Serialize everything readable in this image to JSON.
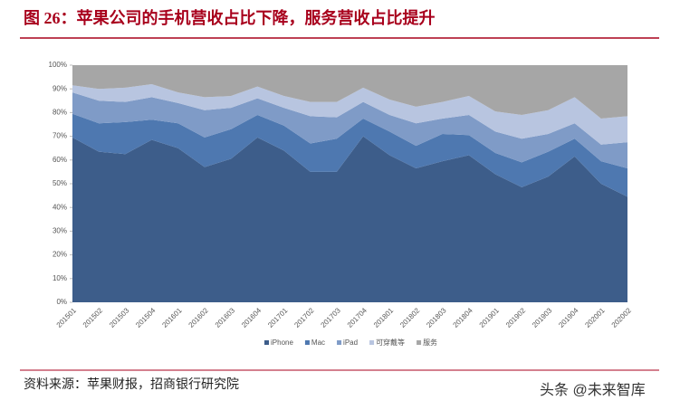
{
  "chart_data": {
    "type": "stacked-area",
    "title": "图 26：苹果公司的手机营收占比下降，服务营收占比提升",
    "source": "资料来源：苹果财报，招商银行研究院",
    "watermark": "头条 @未来智库",
    "categories": [
      "201501",
      "201502",
      "201503",
      "201504",
      "201601",
      "201602",
      "201603",
      "201604",
      "201701",
      "201702",
      "201703",
      "201704",
      "201801",
      "201802",
      "201803",
      "201804",
      "201901",
      "201902",
      "201903",
      "201904",
      "202001",
      "202002"
    ],
    "series": [
      {
        "name": "iPhone",
        "color": "#3d5d8a",
        "values": [
          69.5,
          63.5,
          62.5,
          68.5,
          65,
          57,
          60.5,
          69.5,
          64,
          55,
          55,
          70,
          62,
          56.5,
          59.5,
          62,
          54,
          48.5,
          53,
          61.5,
          50,
          44.5
        ]
      },
      {
        "name": "Mac",
        "color": "#4e78b0",
        "values": [
          10,
          12,
          13.5,
          8.5,
          10.5,
          12.5,
          12.5,
          9.5,
          10.5,
          12,
          14,
          7.5,
          10,
          9.5,
          11.5,
          8.5,
          9,
          10.5,
          10.5,
          7.5,
          9.5,
          12
        ]
      },
      {
        "name": "iPad",
        "color": "#7f9bc7",
        "values": [
          9,
          9.5,
          8.5,
          9.5,
          8.5,
          11.5,
          9,
          7,
          7.5,
          11.5,
          9,
          7,
          7,
          9.5,
          6.5,
          8.5,
          9,
          10,
          7.5,
          6.5,
          7,
          11
        ]
      },
      {
        "name": "可穿戴等",
        "color": "#b8c5e0",
        "values": [
          3,
          5,
          6,
          5.5,
          4.5,
          5.5,
          5,
          5,
          5,
          6,
          6.5,
          6,
          6.5,
          7,
          7,
          8,
          8.5,
          10,
          10,
          11,
          11,
          11
        ]
      },
      {
        "name": "服务",
        "color": "#a6a6a6",
        "values": [
          8.5,
          10,
          9.5,
          8,
          11.5,
          13.5,
          13,
          9,
          13,
          15.5,
          15.5,
          9.5,
          14.5,
          17.5,
          15.5,
          13,
          19.5,
          21,
          19,
          13.5,
          22.5,
          21.5
        ]
      }
    ],
    "ylim": [
      0,
      100
    ],
    "yticks": [
      {
        "value": 0,
        "label": "0%"
      },
      {
        "value": 10,
        "label": "10%"
      },
      {
        "value": 20,
        "label": "20%"
      },
      {
        "value": 30,
        "label": "30%"
      },
      {
        "value": 40,
        "label": "40%"
      },
      {
        "value": 50,
        "label": "50%"
      },
      {
        "value": 60,
        "label": "60%"
      },
      {
        "value": 70,
        "label": "70%"
      },
      {
        "value": 80,
        "label": "80%"
      },
      {
        "value": 90,
        "label": "90%"
      },
      {
        "value": 100,
        "label": "100%"
      }
    ]
  }
}
